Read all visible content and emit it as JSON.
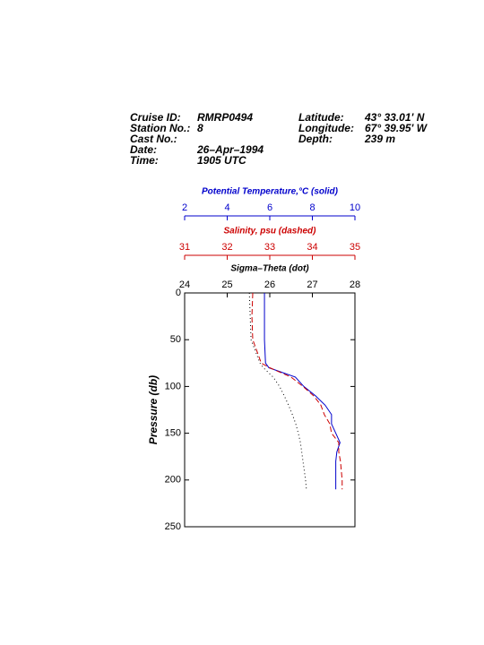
{
  "header": {
    "left": [
      {
        "label": "Cruise ID:",
        "value": "RMRP0494"
      },
      {
        "label": "Station No.:",
        "value": "8"
      },
      {
        "label": "Cast No.:"
      },
      {
        "label": "Date:",
        "value": "26–Apr–1994"
      },
      {
        "label": "Time:",
        "value": "1905 UTC"
      }
    ],
    "right": [
      {
        "label": "Latitude:",
        "value": "43° 33.01' N"
      },
      {
        "label": "Longitude:",
        "value": "67° 39.95' W"
      },
      {
        "label": "Depth:",
        "value": "239 m"
      }
    ]
  },
  "chart_data": {
    "type": "line",
    "ylabel": "Pressure (db)",
    "ylim": [
      0,
      250
    ],
    "yticks": [
      0,
      50,
      100,
      150,
      200,
      250
    ],
    "y": [
      0,
      25,
      50,
      75,
      80,
      90,
      100,
      110,
      120,
      130,
      140,
      150,
      160,
      170,
      180,
      190,
      200,
      210
    ],
    "series": [
      {
        "name": "Potential Temperature,°C (solid)",
        "color": "#0000cc",
        "style": "solid",
        "xlim": [
          2,
          10
        ],
        "xticks": [
          2,
          4,
          6,
          8,
          10
        ],
        "values": [
          5.75,
          5.75,
          5.75,
          5.8,
          5.96,
          7.2,
          7.6,
          8.15,
          8.6,
          8.9,
          8.9,
          9.1,
          9.3,
          9.15,
          9.1,
          9.1,
          9.1,
          9.1
        ]
      },
      {
        "name": "Salinity, psu  (dashed)",
        "color": "#cc0000",
        "style": "dashed",
        "xlim": [
          31,
          35
        ],
        "xticks": [
          31,
          32,
          33,
          34,
          35
        ],
        "values": [
          32.6,
          32.58,
          32.6,
          32.8,
          33.0,
          33.5,
          33.78,
          34.03,
          34.2,
          34.28,
          34.41,
          34.45,
          34.62,
          34.62,
          34.66,
          34.68,
          34.7,
          34.7
        ]
      },
      {
        "name": "Sigma–Theta (dot)",
        "color": "#000000",
        "style": "dotted",
        "xlim": [
          24,
          28
        ],
        "xticks": [
          24,
          25,
          26,
          27,
          28
        ],
        "values": [
          25.52,
          25.54,
          25.56,
          25.77,
          25.85,
          26.08,
          26.23,
          26.34,
          26.44,
          26.53,
          26.61,
          26.67,
          26.72,
          26.75,
          26.78,
          26.81,
          26.84,
          26.86
        ]
      }
    ]
  }
}
